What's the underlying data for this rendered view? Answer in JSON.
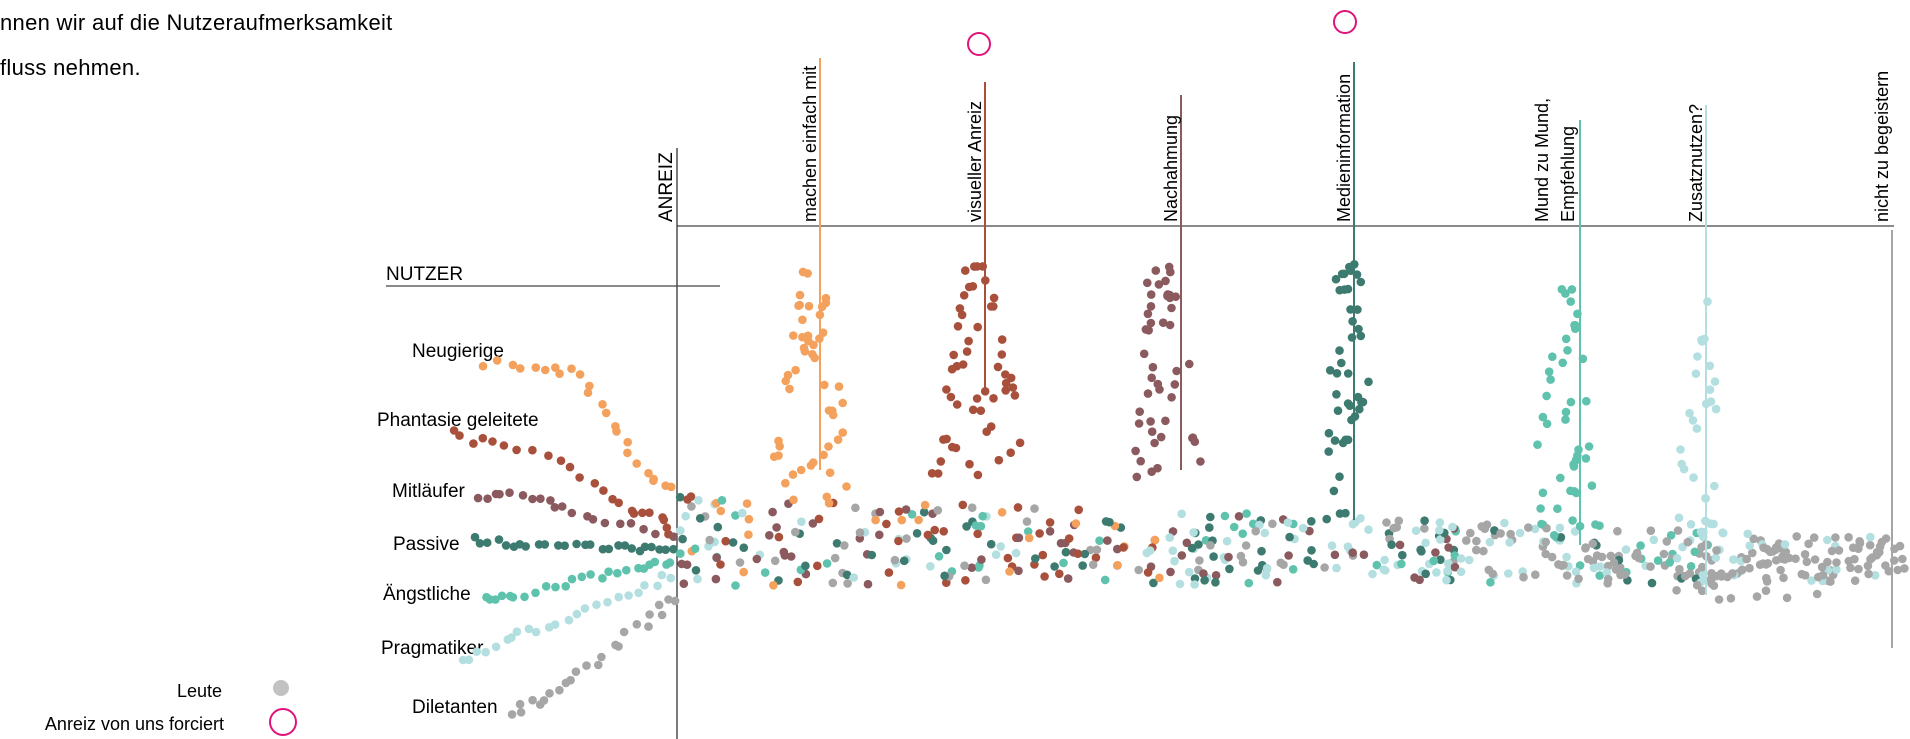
{
  "intro": {
    "line1": "nnen wir auf die Nutzeraufmerksamkeit",
    "line2": "fluss nehmen."
  },
  "axis": {
    "anreiz_label": "ANREIZ",
    "nutzer_label": "NUTZER"
  },
  "user_types": [
    {
      "key": "neugierige",
      "label": "Neugierige",
      "color": "#f4a15d"
    },
    {
      "key": "phantasie",
      "label": "Phantasie geleitete",
      "color": "#a8503c"
    },
    {
      "key": "mitlaeufer",
      "label": "Mitläufer",
      "color": "#8a5a5e"
    },
    {
      "key": "passive",
      "label": "Passive",
      "color": "#3d7a70"
    },
    {
      "key": "aengstliche",
      "label": "Ängstliche",
      "color": "#5ec2ad"
    },
    {
      "key": "pragmatiker",
      "label": "Pragmatiker",
      "color": "#b3dfe0"
    },
    {
      "key": "dilettanten",
      "label": "Diletanten",
      "color": "#a6a6a6"
    }
  ],
  "stimuli": [
    {
      "label": "machen einfach mit",
      "color": "#f4a15d",
      "forced": false
    },
    {
      "label": "visueller Anreiz",
      "color": "#a8503c",
      "forced": true
    },
    {
      "label": "Nachahmung",
      "color": "#8a5a5e",
      "forced": false
    },
    {
      "label": "Medieninformation",
      "color": "#3d7a70",
      "forced": true
    },
    {
      "label": "Mund zu Mund,",
      "label2": "Empfehlung",
      "color": "#5ec2ad",
      "forced": false
    },
    {
      "label": "Zusatznutzen?",
      "color": "#b3dfe0",
      "forced": false
    },
    {
      "label": "nicht zu begeistern",
      "color": "#a6a6a6",
      "forced": false
    }
  ],
  "legend": {
    "people_label": "Leute",
    "people_color": "#c2c2c2",
    "forced_label": "Anreiz von uns forciert",
    "forced_color": "#e0137a"
  }
}
